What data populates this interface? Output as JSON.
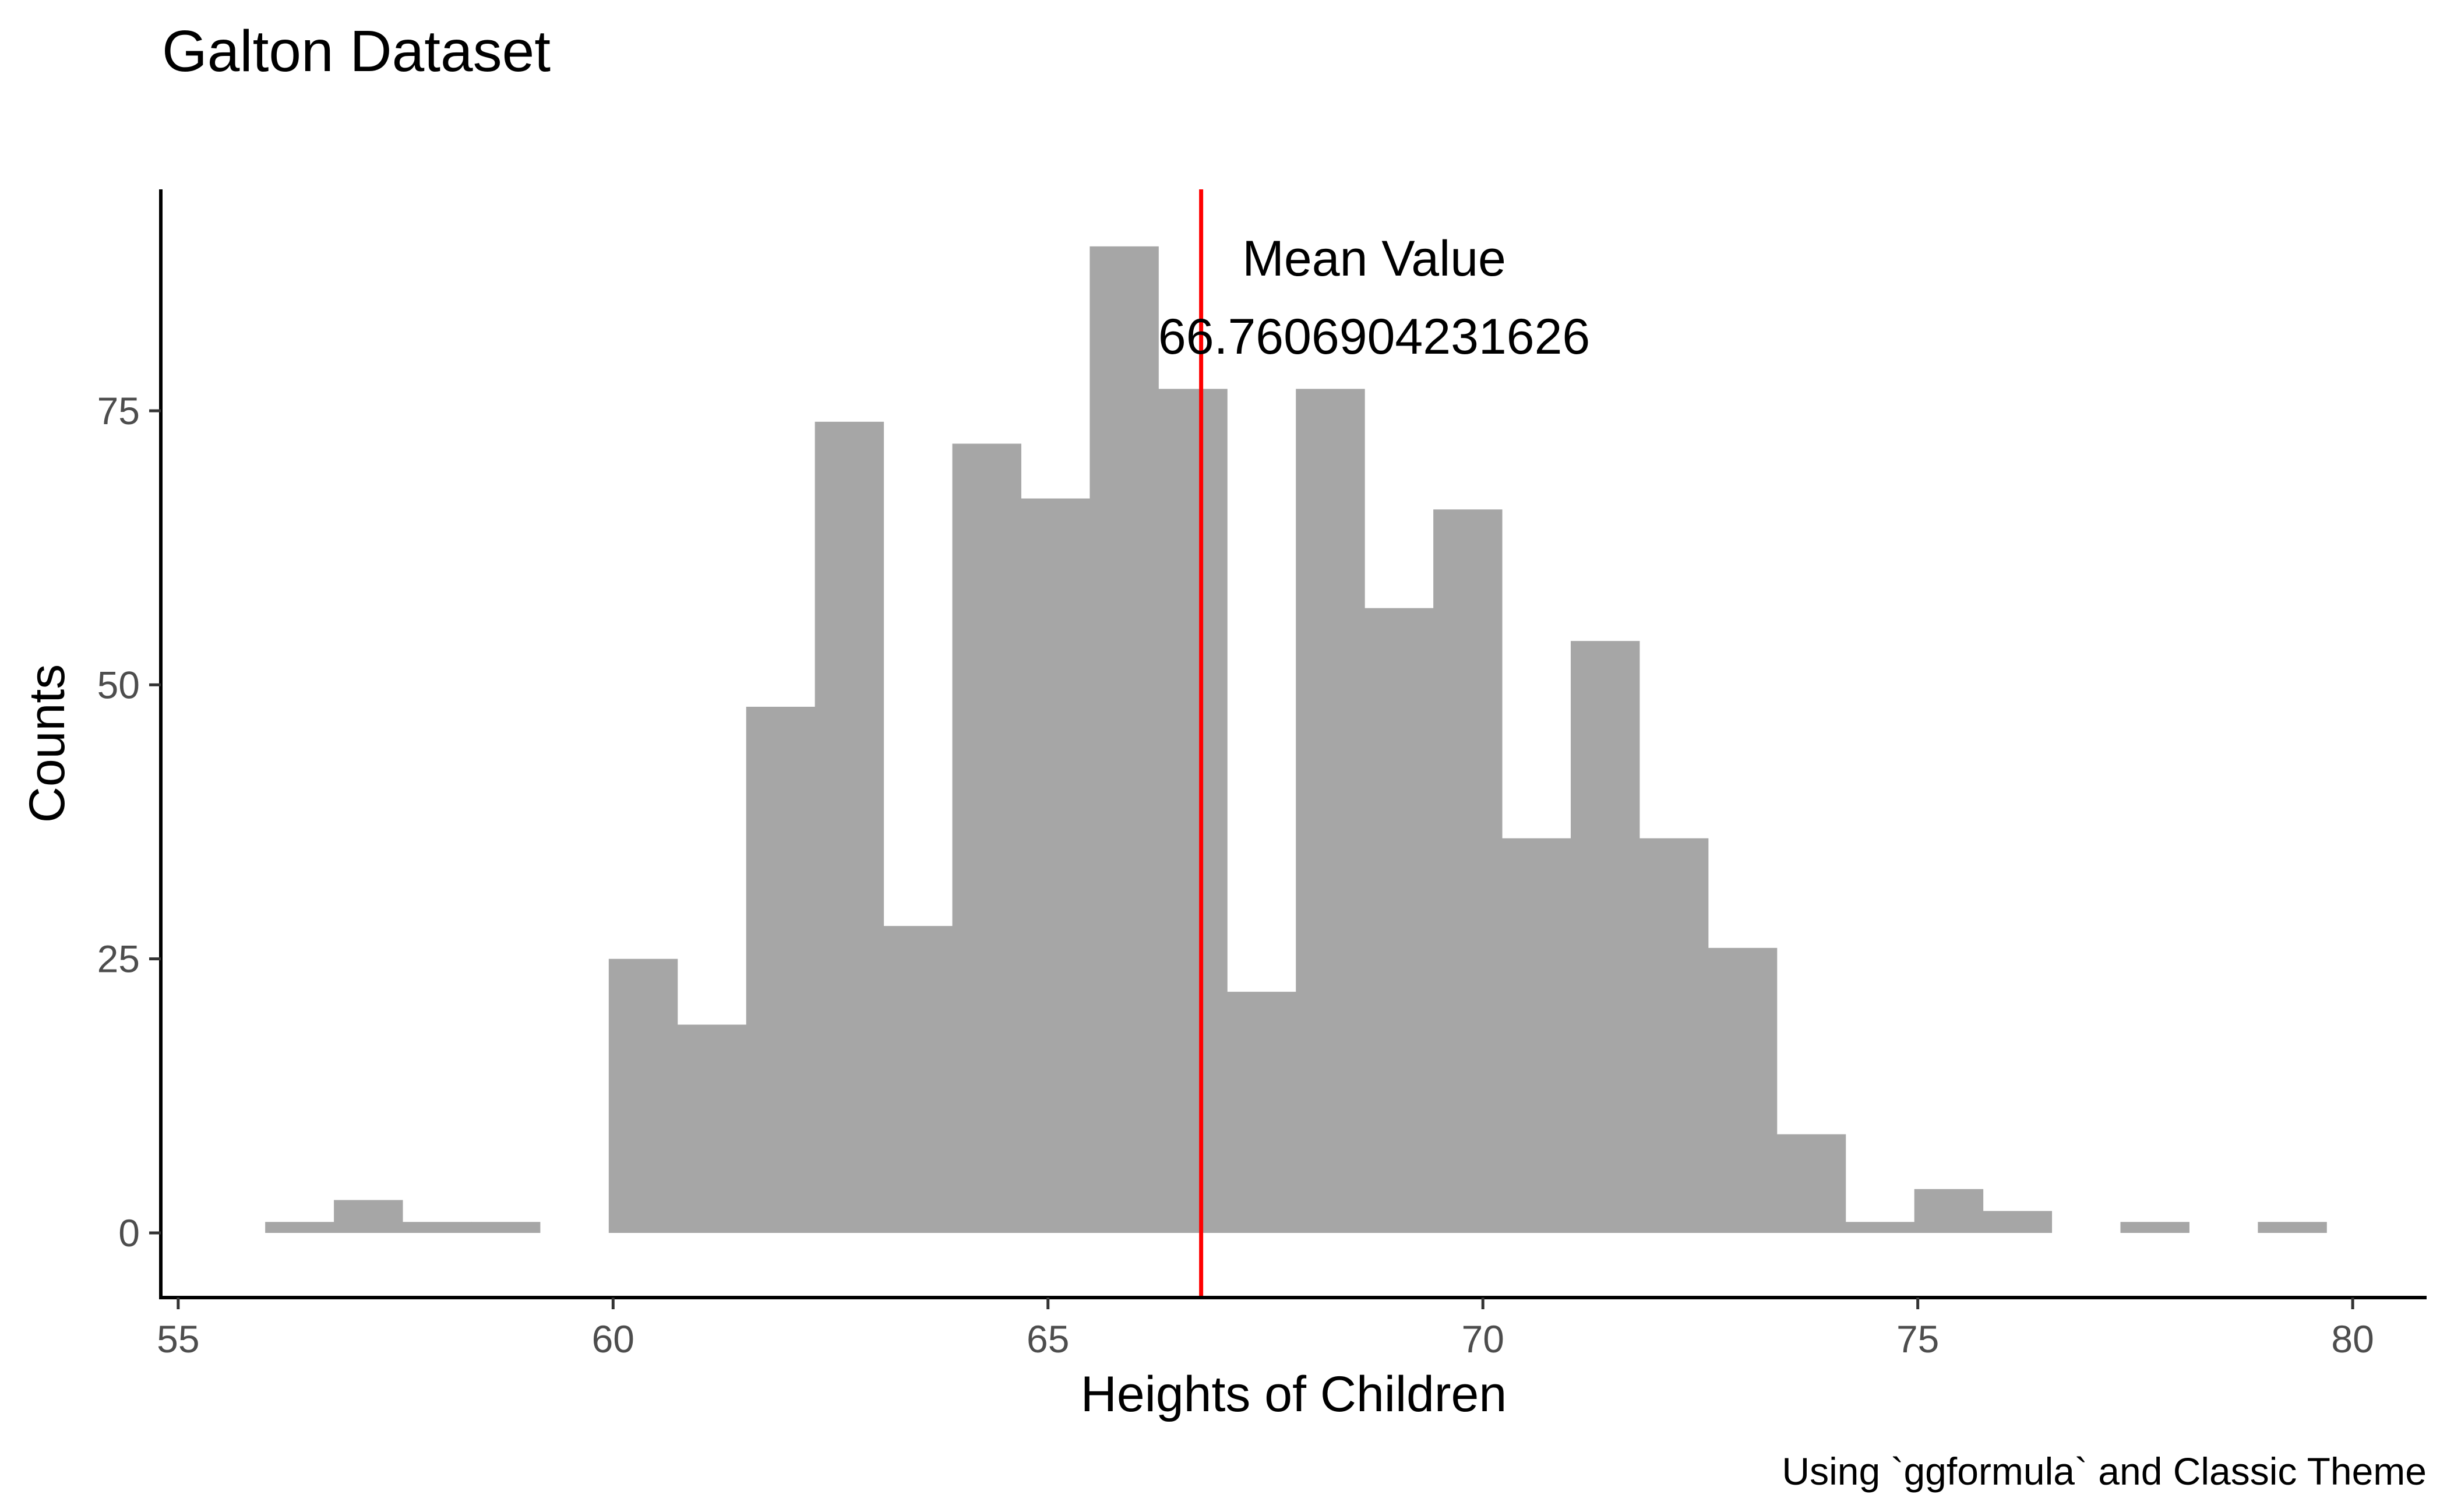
{
  "chart_data": {
    "type": "bar",
    "title": "Galton Dataset",
    "xlabel": "Heights of Children",
    "ylabel": "Counts",
    "caption": "Using `ggformula` and Classic Theme",
    "annotation": {
      "line1": "Mean Value",
      "line2": "66.7606904231626"
    },
    "mean_value": 66.7606904231626,
    "mean_line_color": "#ff0000",
    "bar_color": "#a6a6a6",
    "xlim": [
      54.8,
      80.85
    ],
    "ylim": [
      -5.9,
      95.2
    ],
    "xticks": [
      "55",
      "60",
      "65",
      "70",
      "75",
      "80"
    ],
    "yticks": [
      "0",
      "25",
      "50",
      "75"
    ],
    "bins": [
      {
        "x0": 56.0,
        "x1": 56.79,
        "count": 1
      },
      {
        "x0": 56.79,
        "x1": 57.58,
        "count": 3
      },
      {
        "x0": 57.58,
        "x1": 58.37,
        "count": 1
      },
      {
        "x0": 58.37,
        "x1": 59.16,
        "count": 1
      },
      {
        "x0": 59.16,
        "x1": 59.95,
        "count": 0
      },
      {
        "x0": 59.95,
        "x1": 60.74,
        "count": 25
      },
      {
        "x0": 60.74,
        "x1": 61.53,
        "count": 19
      },
      {
        "x0": 61.53,
        "x1": 62.32,
        "count": 48
      },
      {
        "x0": 62.32,
        "x1": 63.11,
        "count": 74
      },
      {
        "x0": 63.11,
        "x1": 63.9,
        "count": 28
      },
      {
        "x0": 63.9,
        "x1": 64.69,
        "count": 72
      },
      {
        "x0": 64.69,
        "x1": 65.48,
        "count": 67
      },
      {
        "x0": 65.48,
        "x1": 66.27,
        "count": 90
      },
      {
        "x0": 66.27,
        "x1": 67.06,
        "count": 77
      },
      {
        "x0": 67.06,
        "x1": 67.85,
        "count": 22
      },
      {
        "x0": 67.85,
        "x1": 68.64,
        "count": 77
      },
      {
        "x0": 68.64,
        "x1": 69.43,
        "count": 57
      },
      {
        "x0": 69.43,
        "x1": 70.22,
        "count": 66
      },
      {
        "x0": 70.22,
        "x1": 71.01,
        "count": 36
      },
      {
        "x0": 71.01,
        "x1": 71.8,
        "count": 54
      },
      {
        "x0": 71.8,
        "x1": 72.59,
        "count": 36
      },
      {
        "x0": 72.59,
        "x1": 73.38,
        "count": 26
      },
      {
        "x0": 73.38,
        "x1": 74.17,
        "count": 9
      },
      {
        "x0": 74.17,
        "x1": 74.96,
        "count": 1
      },
      {
        "x0": 74.96,
        "x1": 75.75,
        "count": 4
      },
      {
        "x0": 75.75,
        "x1": 76.54,
        "count": 2
      },
      {
        "x0": 76.54,
        "x1": 77.33,
        "count": 0
      },
      {
        "x0": 77.33,
        "x1": 78.12,
        "count": 1
      },
      {
        "x0": 78.12,
        "x1": 78.91,
        "count": 0
      },
      {
        "x0": 78.91,
        "x1": 79.7,
        "count": 1
      }
    ],
    "grid": false,
    "legend": "none"
  }
}
